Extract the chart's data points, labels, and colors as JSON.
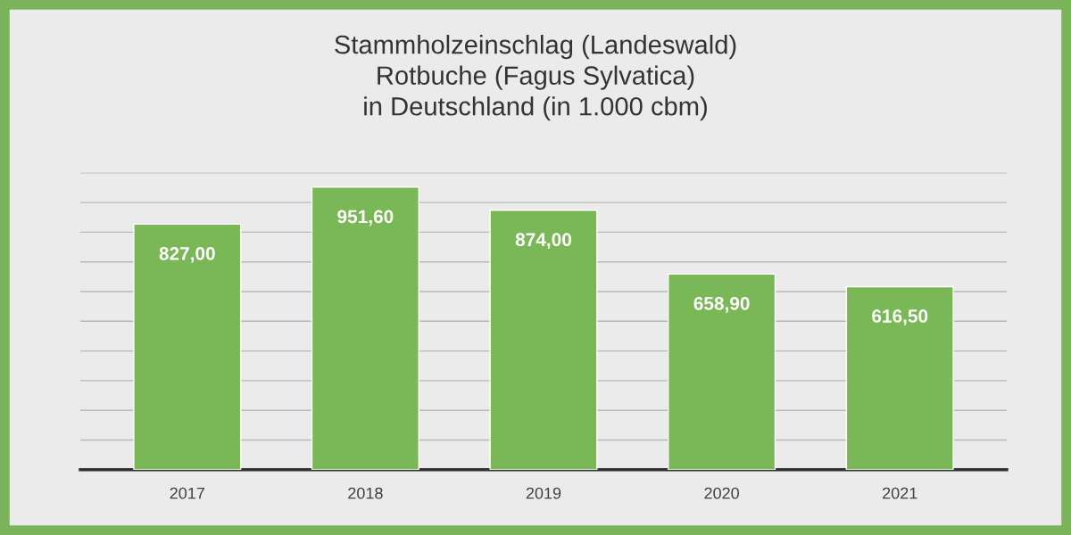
{
  "chart_data": {
    "type": "bar",
    "title": "Stammholzeinschlag (Landeswald)\nRotbuche (Fagus Sylvatica)\nin Deutschland (in 1.000 cbm)",
    "categories": [
      "2017",
      "2018",
      "2019",
      "2020",
      "2021"
    ],
    "values": [
      827.0,
      951.6,
      874.0,
      658.9,
      616.5
    ],
    "value_labels": [
      "827,00",
      "951,60",
      "874,00",
      "658,90",
      "616,50"
    ],
    "color": "#7ab756",
    "ylim": [
      0,
      1000
    ],
    "yticks": [
      {
        "value": 0,
        "label": null
      },
      {
        "value": 100,
        "label": null
      },
      {
        "value": 200,
        "label": null
      },
      {
        "value": 300,
        "label": null
      },
      {
        "value": 400,
        "label": null
      },
      {
        "value": 500,
        "label": null
      },
      {
        "value": 600,
        "label": null
      },
      {
        "value": 700,
        "label": null
      },
      {
        "value": 800,
        "label": null
      },
      {
        "value": 900,
        "label": null
      },
      {
        "value": 1000,
        "label": null
      }
    ],
    "grid": "y",
    "legend": false
  }
}
